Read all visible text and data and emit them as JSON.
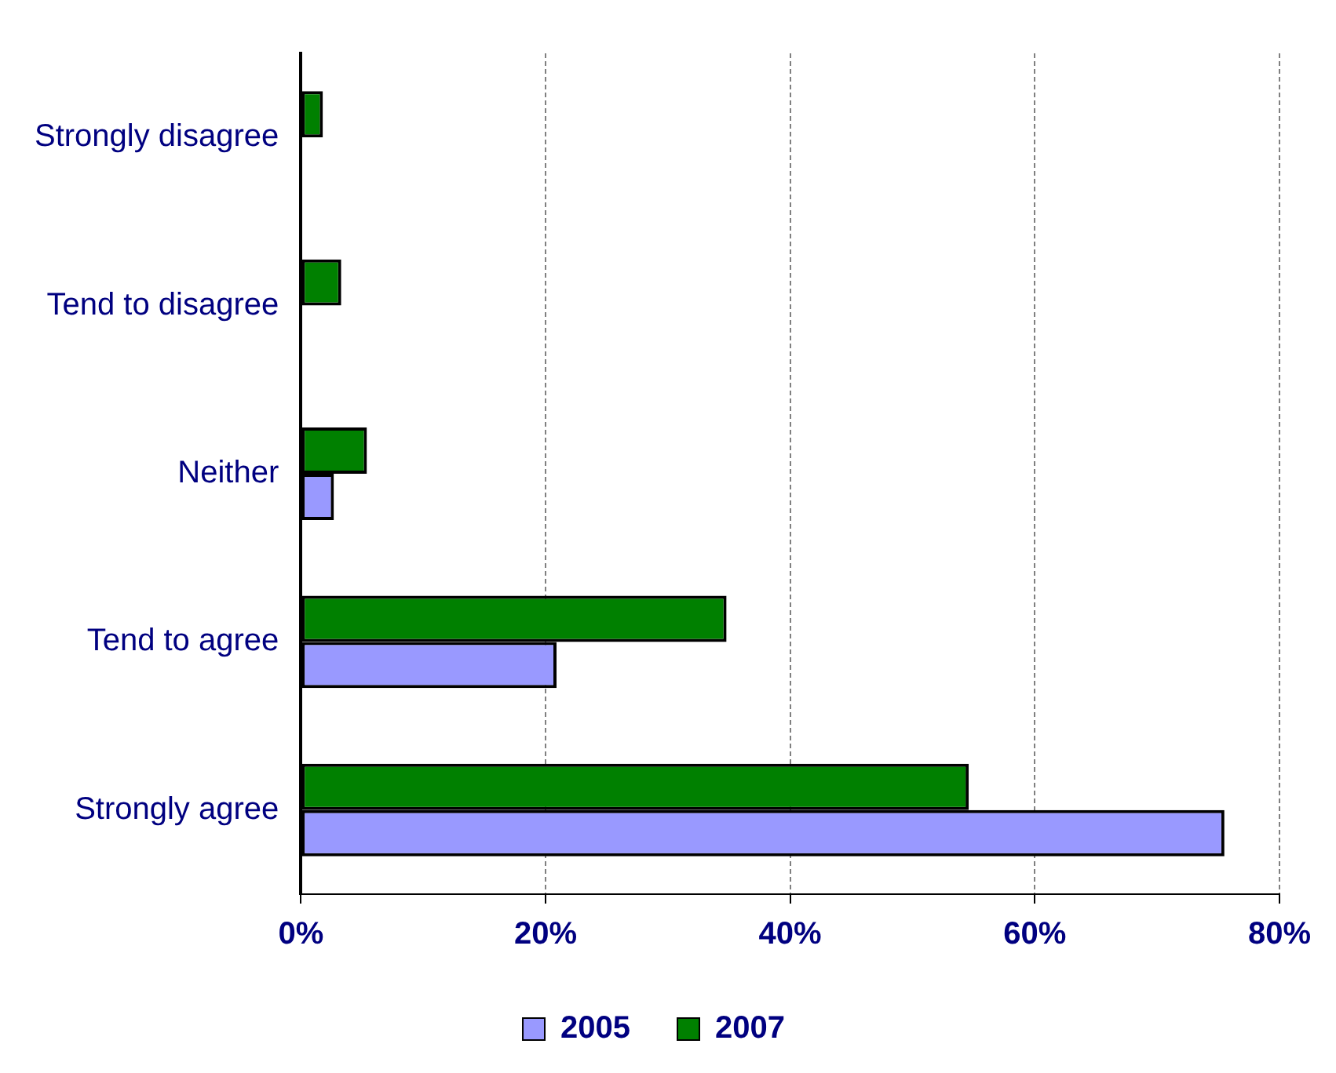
{
  "chart_data": {
    "type": "bar",
    "orientation": "horizontal",
    "categories": [
      "Strongly disagree",
      "Tend to disagree",
      "Neither",
      "Tend to agree",
      "Strongly agree"
    ],
    "series": [
      {
        "name": "2005",
        "color": "#9999ff",
        "values": [
          0,
          0,
          2.7,
          20.9,
          75.5
        ]
      },
      {
        "name": "2007",
        "color": "#008000",
        "values": [
          1.8,
          3.3,
          5.4,
          34.8,
          54.6
        ]
      }
    ],
    "xlim": [
      0,
      80
    ],
    "xticks": [
      {
        "value": 0,
        "label": "0%"
      },
      {
        "value": 20,
        "label": "20%"
      },
      {
        "value": 40,
        "label": "40%"
      },
      {
        "value": 60,
        "label": "60%"
      },
      {
        "value": 80,
        "label": "80%"
      }
    ],
    "grid": "x",
    "legend": "bottom"
  }
}
